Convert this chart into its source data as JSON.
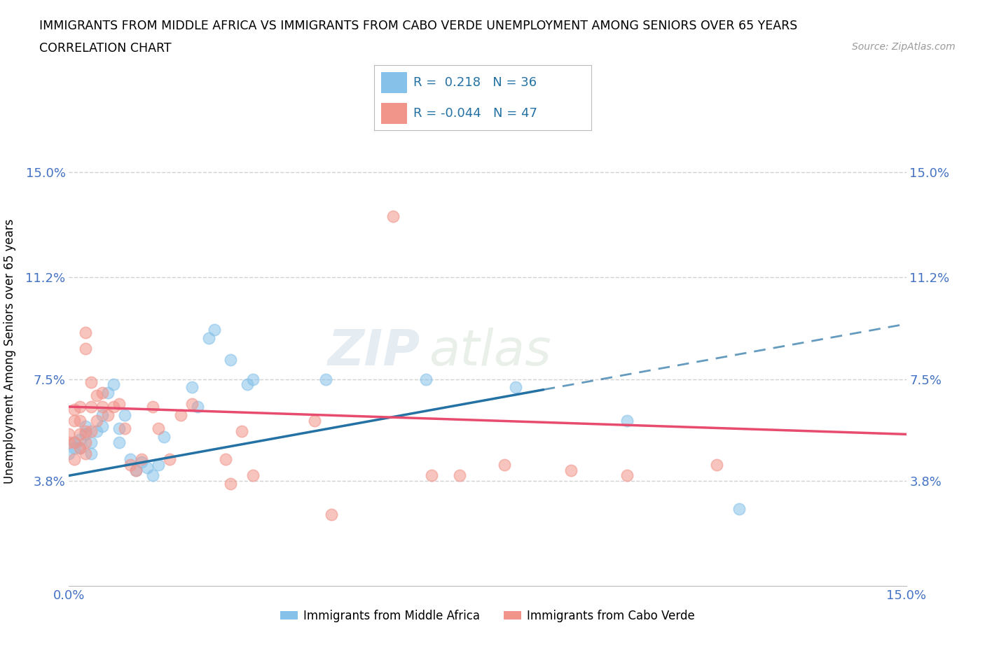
{
  "title_line1": "IMMIGRANTS FROM MIDDLE AFRICA VS IMMIGRANTS FROM CABO VERDE UNEMPLOYMENT AMONG SENIORS OVER 65 YEARS",
  "title_line2": "CORRELATION CHART",
  "source_text": "Source: ZipAtlas.com",
  "ylabel": "Unemployment Among Seniors over 65 years",
  "xlim": [
    0.0,
    0.15
  ],
  "ylim": [
    0.0,
    0.17
  ],
  "ytick_values": [
    0.038,
    0.075,
    0.112,
    0.15
  ],
  "ytick_labels": [
    "3.8%",
    "7.5%",
    "11.2%",
    "15.0%"
  ],
  "gridline_color": "#cccccc",
  "R_blue": 0.218,
  "N_blue": 36,
  "R_pink": -0.044,
  "N_pink": 47,
  "blue_color": "#85C1E9",
  "pink_color": "#F1948A",
  "blue_line_color": "#2471A3",
  "pink_line_color": "#E74C6E",
  "blue_scatter": [
    [
      0.0,
      0.048
    ],
    [
      0.001,
      0.05
    ],
    [
      0.001,
      0.052
    ],
    [
      0.002,
      0.053
    ],
    [
      0.002,
      0.05
    ],
    [
      0.003,
      0.058
    ],
    [
      0.003,
      0.055
    ],
    [
      0.004,
      0.048
    ],
    [
      0.004,
      0.052
    ],
    [
      0.005,
      0.056
    ],
    [
      0.006,
      0.058
    ],
    [
      0.006,
      0.062
    ],
    [
      0.007,
      0.07
    ],
    [
      0.008,
      0.073
    ],
    [
      0.009,
      0.052
    ],
    [
      0.009,
      0.057
    ],
    [
      0.01,
      0.062
    ],
    [
      0.011,
      0.046
    ],
    [
      0.012,
      0.042
    ],
    [
      0.013,
      0.045
    ],
    [
      0.014,
      0.043
    ],
    [
      0.015,
      0.04
    ],
    [
      0.016,
      0.044
    ],
    [
      0.017,
      0.054
    ],
    [
      0.022,
      0.072
    ],
    [
      0.023,
      0.065
    ],
    [
      0.025,
      0.09
    ],
    [
      0.026,
      0.093
    ],
    [
      0.029,
      0.082
    ],
    [
      0.032,
      0.073
    ],
    [
      0.033,
      0.075
    ],
    [
      0.046,
      0.075
    ],
    [
      0.064,
      0.075
    ],
    [
      0.08,
      0.072
    ],
    [
      0.1,
      0.06
    ],
    [
      0.12,
      0.028
    ]
  ],
  "pink_scatter": [
    [
      0.0,
      0.052
    ],
    [
      0.0,
      0.055
    ],
    [
      0.001,
      0.046
    ],
    [
      0.001,
      0.052
    ],
    [
      0.001,
      0.06
    ],
    [
      0.001,
      0.064
    ],
    [
      0.002,
      0.05
    ],
    [
      0.002,
      0.055
    ],
    [
      0.002,
      0.06
    ],
    [
      0.002,
      0.065
    ],
    [
      0.003,
      0.048
    ],
    [
      0.003,
      0.052
    ],
    [
      0.003,
      0.056
    ],
    [
      0.003,
      0.086
    ],
    [
      0.003,
      0.092
    ],
    [
      0.004,
      0.056
    ],
    [
      0.004,
      0.065
    ],
    [
      0.004,
      0.074
    ],
    [
      0.005,
      0.06
    ],
    [
      0.005,
      0.069
    ],
    [
      0.006,
      0.065
    ],
    [
      0.006,
      0.07
    ],
    [
      0.007,
      0.062
    ],
    [
      0.008,
      0.065
    ],
    [
      0.009,
      0.066
    ],
    [
      0.01,
      0.057
    ],
    [
      0.011,
      0.044
    ],
    [
      0.012,
      0.042
    ],
    [
      0.013,
      0.046
    ],
    [
      0.015,
      0.065
    ],
    [
      0.016,
      0.057
    ],
    [
      0.018,
      0.046
    ],
    [
      0.02,
      0.062
    ],
    [
      0.022,
      0.066
    ],
    [
      0.028,
      0.046
    ],
    [
      0.029,
      0.037
    ],
    [
      0.031,
      0.056
    ],
    [
      0.033,
      0.04
    ],
    [
      0.044,
      0.06
    ],
    [
      0.047,
      0.026
    ],
    [
      0.058,
      0.134
    ],
    [
      0.065,
      0.04
    ],
    [
      0.07,
      0.04
    ],
    [
      0.078,
      0.044
    ],
    [
      0.09,
      0.042
    ],
    [
      0.1,
      0.04
    ],
    [
      0.116,
      0.044
    ]
  ],
  "watermark_ZIP": "ZIP",
  "watermark_atlas": "atlas",
  "legend_blue_label": "Immigrants from Middle Africa",
  "legend_pink_label": "Immigrants from Cabo Verde",
  "blue_line_start_y": 0.04,
  "blue_line_end_y": 0.095,
  "blue_line_solid_end_x": 0.085,
  "pink_line_start_y": 0.065,
  "pink_line_end_y": 0.055
}
